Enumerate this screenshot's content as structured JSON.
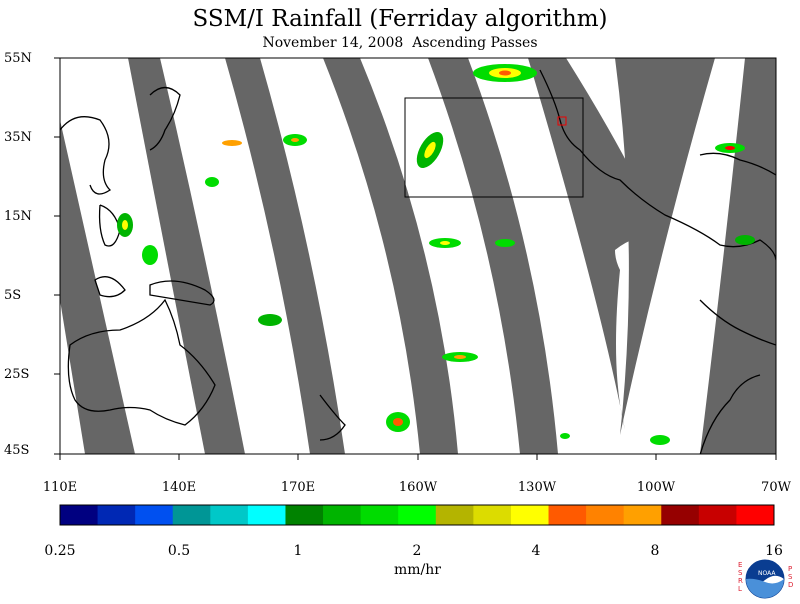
{
  "title": "SSM/I Rainfall (Ferriday algorithm)",
  "subtitle": "November 14, 2008  Ascending Passes",
  "lat_labels": [
    "55N",
    "35N",
    "15N",
    "5S",
    "25S",
    "45S"
  ],
  "lon_labels": [
    "110E",
    "140E",
    "170E",
    "160W",
    "130W",
    "100W",
    "70W"
  ],
  "colorbar": {
    "colors": [
      "#000080",
      "#0028b4",
      "#0050f0",
      "#009696",
      "#00c8c8",
      "#00ffff",
      "#008200",
      "#00b400",
      "#00dc00",
      "#00ff00",
      "#b4b400",
      "#dcdc00",
      "#ffff00",
      "#ff5a00",
      "#ff8200",
      "#ffa000",
      "#960000",
      "#c80000",
      "#ff0000"
    ],
    "tick_labels": [
      "0.25",
      "0.5",
      "1",
      "2",
      "4",
      "8",
      "16"
    ],
    "units": "mm/hr"
  },
  "map": {
    "extent": {
      "lon": "110E to 70W",
      "lat": "45S to 55N"
    },
    "swath_gap_color": "#666666",
    "highlight_box": {
      "lon": [
        "165W",
        "120W"
      ],
      "lat": [
        "20N",
        "45N"
      ]
    }
  },
  "logo": {
    "name": "noaa-logo",
    "letters_left": [
      "E",
      "S",
      "R",
      "L"
    ],
    "letters_right": [
      "P",
      "S",
      "D"
    ],
    "text": "NOAA"
  }
}
